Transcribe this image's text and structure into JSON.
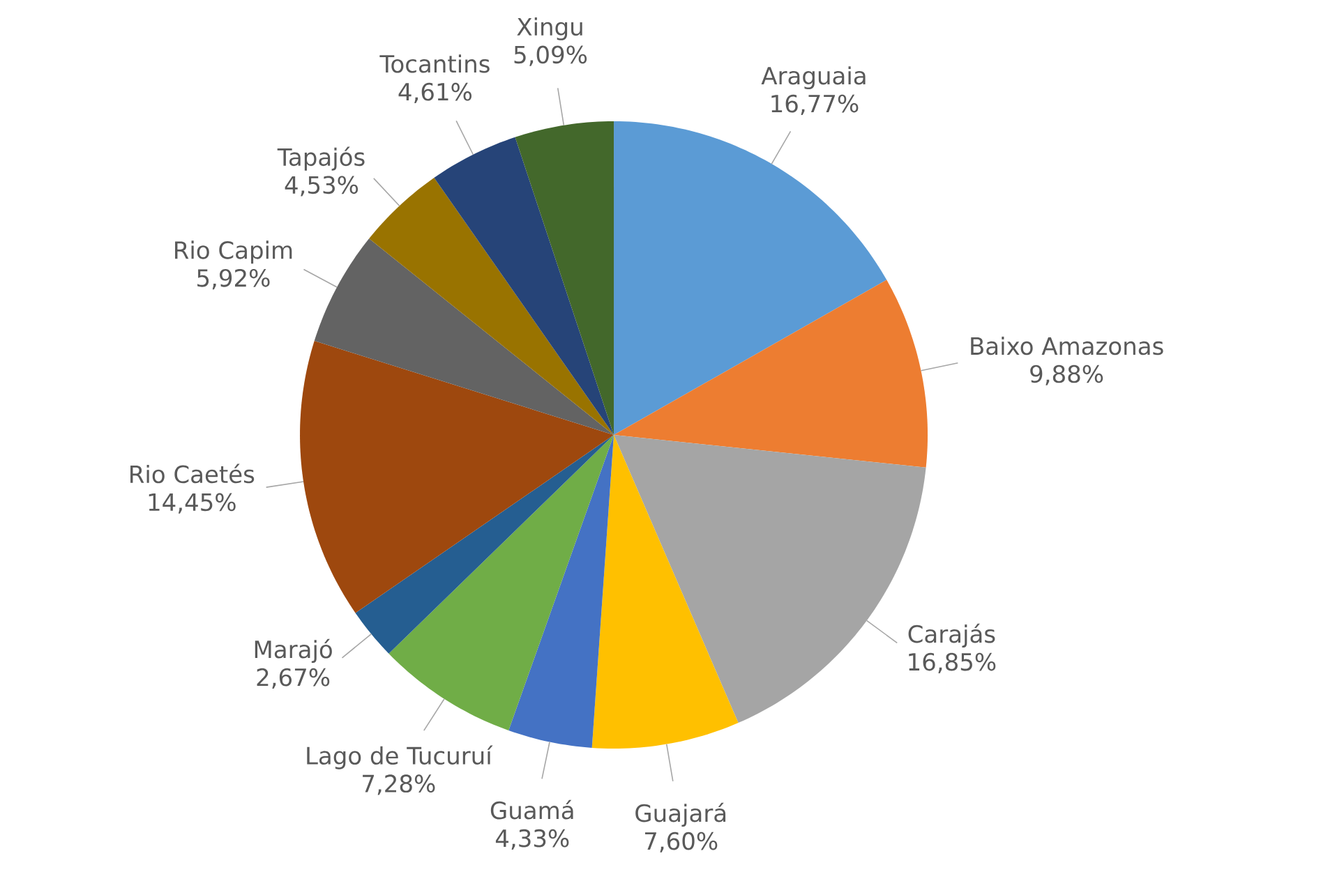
{
  "chart_data": {
    "type": "pie",
    "categories": [
      "Araguaia",
      "Baixo Amazonas",
      "Carajás",
      "Guajará",
      "Guamá",
      "Lago de Tucuruí",
      "Marajó",
      "Rio Caetés",
      "Rio Capim",
      "Tapajós",
      "Tocantins",
      "Xingu"
    ],
    "values": [
      16.77,
      9.88,
      16.85,
      7.6,
      4.33,
      7.28,
      2.67,
      14.45,
      5.92,
      4.53,
      4.61,
      5.09
    ],
    "colors": [
      "#5b9bd5",
      "#ed7d31",
      "#a5a5a5",
      "#ffc000",
      "#4472c4",
      "#70ad47",
      "#255e91",
      "#9e480e",
      "#636363",
      "#997300",
      "#264478",
      "#43682b"
    ],
    "value_labels": [
      "16,77%",
      "9,88%",
      "16,85%",
      "7,60%",
      "4,33%",
      "7,28%",
      "2,67%",
      "14,45%",
      "5,92%",
      "4,53%",
      "4,61%",
      "5,09%"
    ]
  }
}
